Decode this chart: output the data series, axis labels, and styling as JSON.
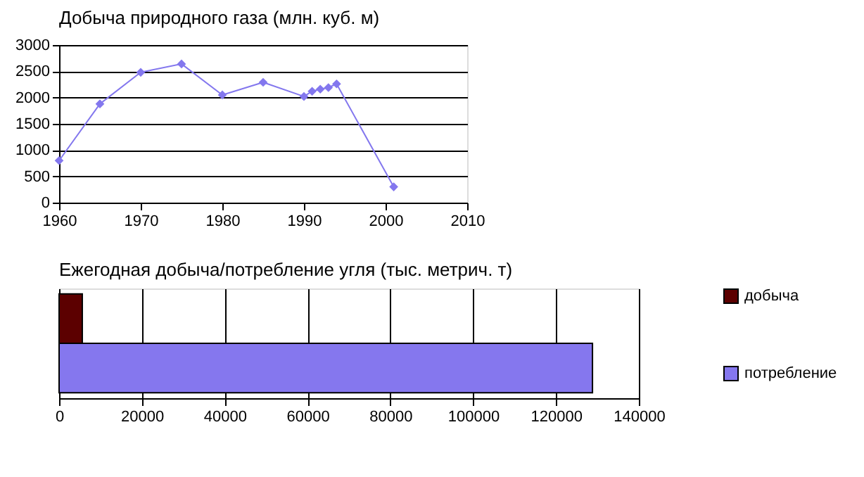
{
  "chart_data": [
    {
      "type": "line",
      "title": "Добыча природного газа (млн. куб. м)",
      "x": [
        1960,
        1965,
        1970,
        1975,
        1980,
        1985,
        1990,
        1991,
        1992,
        1993,
        1994,
        2001
      ],
      "series": [
        {
          "color": "#8377ee",
          "values": [
            800,
            1880,
            2480,
            2640,
            2050,
            2290,
            2020,
            2120,
            2160,
            2190,
            2260,
            300
          ]
        }
      ],
      "xlim": [
        1960,
        2010
      ],
      "xticks": [
        1960,
        1970,
        1980,
        1990,
        2000,
        2010
      ],
      "ylim": [
        0,
        3000
      ],
      "yticks": [
        0,
        500,
        1000,
        1500,
        2000,
        2500,
        3000
      ],
      "grid": "y",
      "marker": "diamond",
      "legend": false
    },
    {
      "type": "bar",
      "orientation": "horizontal",
      "title": "Ежегодная добыча/потребление угля (тыс. метрич. т)",
      "categories": [
        null
      ],
      "series": [
        {
          "name": "добыча",
          "color": "#5c0000",
          "values": [
            5600
          ]
        },
        {
          "name": "потребление",
          "color": "#8577ee",
          "values": [
            128800
          ]
        }
      ],
      "xlim": [
        0,
        140000
      ],
      "xticks": [
        0,
        20000,
        40000,
        60000,
        80000,
        100000,
        120000,
        140000
      ],
      "grid": "x",
      "legend": "right"
    }
  ]
}
